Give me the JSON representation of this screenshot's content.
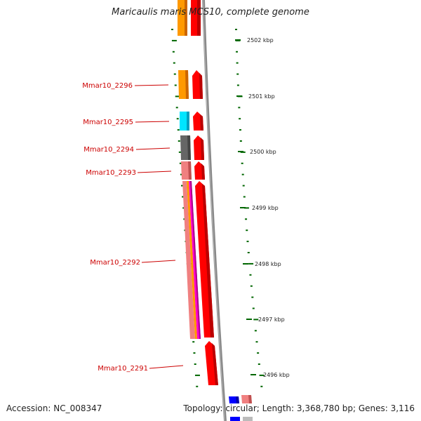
{
  "title": "Maricaulis maris MCS10, complete genome",
  "footer": {
    "accession": "Accession: NC_008347",
    "topology": "Topology: circular; Length: 3,368,780 bp; Genes: 3,116"
  },
  "colors": {
    "label_red": "#cc0000",
    "tick_green": "#006600",
    "backbone_gray": "#888888",
    "gene_red": "#ff0000",
    "orange": "#ff9900",
    "cyan": "#00e5ff",
    "dark_gray": "#666666",
    "pink": "#ff8080",
    "magenta": "#ff00cc",
    "blue": "#0000ff"
  },
  "scale_ticks": [
    {
      "label": "2502 kbp"
    },
    {
      "label": "2501 kbp"
    },
    {
      "label": "2500 kbp"
    },
    {
      "label": "2499 kbp"
    },
    {
      "label": "2498 kbp"
    },
    {
      "label": "2497 kbp"
    },
    {
      "label": "2496 kbp"
    }
  ],
  "gene_labels": [
    {
      "name": "Mmar10_2296"
    },
    {
      "name": "Mmar10_2295"
    },
    {
      "name": "Mmar10_2294"
    },
    {
      "name": "Mmar10_2293"
    },
    {
      "name": "Mmar10_2292"
    },
    {
      "name": "Mmar10_2291"
    }
  ]
}
